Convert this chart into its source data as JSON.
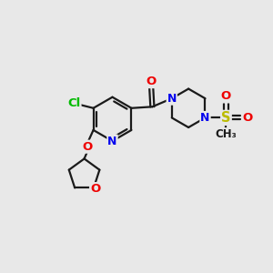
{
  "bg_color": "#e8e8e8",
  "bond_color": "#1a1a1a",
  "atom_colors": {
    "N": "#0000ee",
    "O": "#ee0000",
    "Cl": "#00bb00",
    "S": "#bbbb00",
    "C": "#1a1a1a"
  },
  "figsize": [
    3.0,
    3.0
  ],
  "dpi": 100
}
